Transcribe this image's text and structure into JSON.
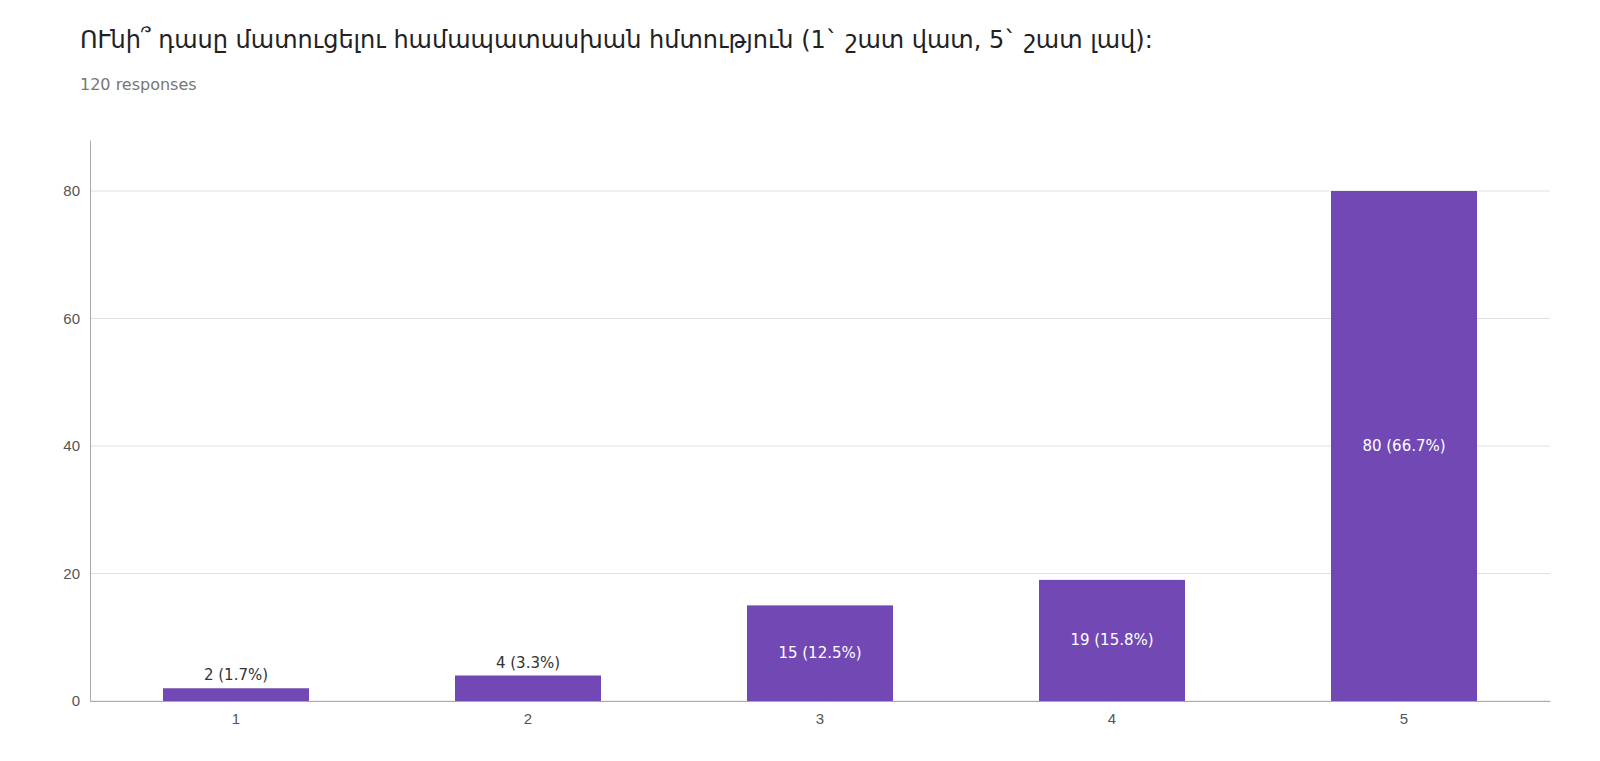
{
  "chart_data": {
    "type": "bar",
    "title": "ՈՒնի՞ դասը մատուցելու համապատասխան հմտություն  (1` շատ վատ, 5` շատ լավ):",
    "subtitle": "120 responses",
    "categories": [
      "1",
      "2",
      "3",
      "4",
      "5"
    ],
    "values": [
      2,
      4,
      15,
      19,
      80
    ],
    "value_labels": [
      "2 (1.7%)",
      "4 (3.3%)",
      "15 (12.5%)",
      "19 (15.8%)",
      "80 (66.7%)"
    ],
    "color": "#7248b4",
    "ylim": [
      0,
      88
    ],
    "yticks": [
      0,
      20,
      40,
      60,
      80
    ],
    "grid": true,
    "data_labels": true
  }
}
